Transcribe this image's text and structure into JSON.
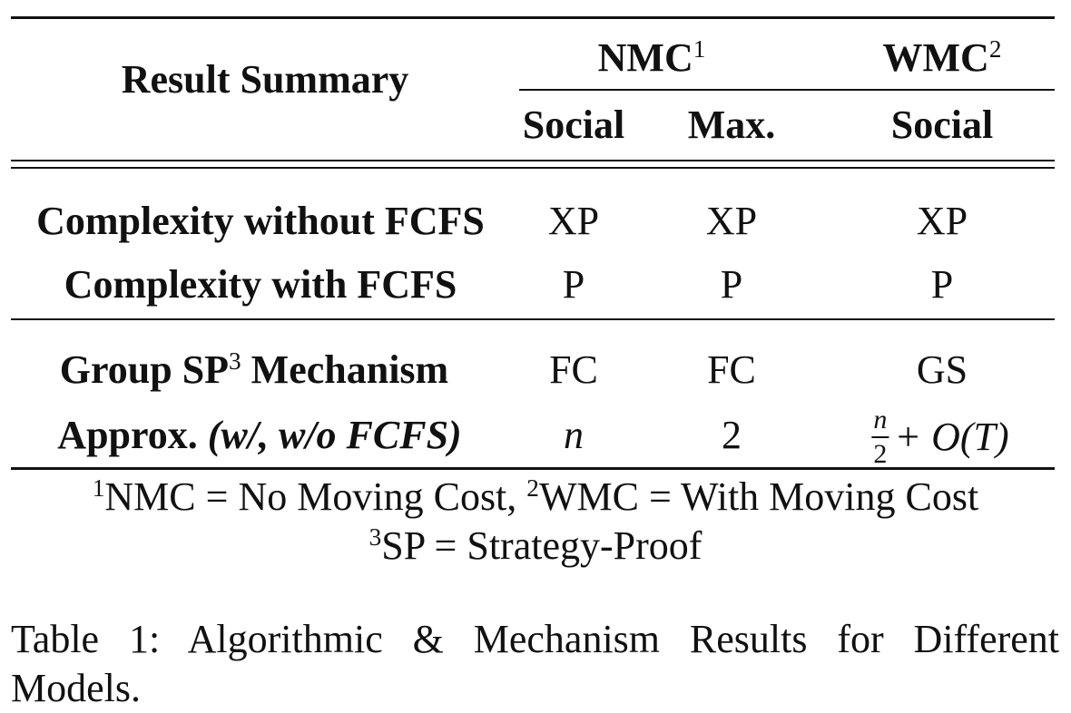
{
  "header": {
    "row_label": "Result Summary",
    "group_nmc": "NMC",
    "group_nmc_sup": "1",
    "group_wmc": "WMC",
    "group_wmc_sup": "2",
    "col_social_nmc": "Social",
    "col_max_nmc": "Max.",
    "col_social_wmc": "Social"
  },
  "rows": [
    {
      "label": "Complexity without FCFS",
      "social": "XP",
      "max": "XP",
      "wmc_social": "XP"
    },
    {
      "label": "Complexity with FCFS",
      "social": "P",
      "max": "P",
      "wmc_social": "P"
    },
    {
      "label_pre": "Group SP",
      "label_sup": "3",
      "label_post": " Mechanism",
      "social": "FC",
      "max": "FC",
      "wmc_social": "GS"
    },
    {
      "label_pre": "Approx. ",
      "label_italic": "(w/, w/o FCFS)",
      "social": "n",
      "max": "2",
      "wmc_frac_num": "n",
      "wmc_frac_den": "2",
      "wmc_rest": "+ O(T)"
    }
  ],
  "footnotes": {
    "fn1_sup": "1",
    "fn1_text": "NMC = No Moving Cost, ",
    "fn2_sup": "2",
    "fn2_text": "WMC = With Moving Cost",
    "fn3_sup": "3",
    "fn3_text": "SP = Strategy-Proof"
  },
  "caption": "Table 1: Algorithmic & Mechanism Results for Different Models."
}
